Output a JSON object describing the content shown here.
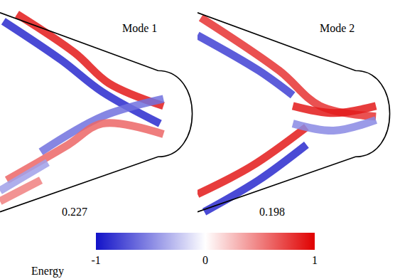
{
  "chart_data": [
    {
      "type": "field",
      "title": "Mode 1",
      "value": 0.227,
      "tick_labels": false,
      "xlim": [
        0,
        290
      ],
      "ylim": [
        320,
        0
      ],
      "bands": [
        {
          "x": [
            5,
            90,
            150,
            235
          ],
          "y": [
            30,
            85,
            130,
            175
          ],
          "value": -0.9
        },
        {
          "x": [
            25,
            110,
            160,
            240
          ],
          "y": [
            20,
            75,
            118,
            150
          ],
          "value": 0.9
        },
        {
          "x": [
            60,
            150,
            240
          ],
          "y": [
            215,
            165,
            140
          ],
          "value": -0.6
        },
        {
          "x": [
            10,
            100,
            150,
            240
          ],
          "y": [
            255,
            205,
            175,
            190
          ],
          "value": 0.6
        },
        {
          "x": [
            0,
            60
          ],
          "y": [
            285,
            255
          ],
          "value": 0.5
        },
        {
          "x": [
            0,
            70
          ],
          "y": [
            270,
            230
          ],
          "value": -0.4
        }
      ]
    },
    {
      "type": "field",
      "title": "Mode 2",
      "value": 0.198,
      "tick_labels": false,
      "xlim": [
        0,
        290
      ],
      "ylim": [
        320,
        0
      ],
      "bands": [
        {
          "x": [
            5,
            120,
            180,
            262
          ],
          "y": [
            25,
            100,
            150,
            165
          ],
          "value": 0.8
        },
        {
          "x": [
            0,
            90,
            140
          ],
          "y": [
            50,
            100,
            135
          ],
          "value": -0.8
        },
        {
          "x": [
            140,
            200,
            262
          ],
          "y": [
            150,
            160,
            150
          ],
          "value": 0.9
        },
        {
          "x": [
            0,
            80,
            160
          ],
          "y": [
            275,
            235,
            180
          ],
          "value": 0.9
        },
        {
          "x": [
            10,
            90,
            160
          ],
          "y": [
            300,
            255,
            205
          ],
          "value": -0.9
        },
        {
          "x": [
            140,
            200,
            262
          ],
          "y": [
            175,
            185,
            170
          ],
          "value": -0.5
        }
      ]
    },
    {
      "type": "colorbar",
      "label": "Energy",
      "range": [
        -1,
        1
      ],
      "ticks": [
        -1,
        0,
        1
      ],
      "colors": [
        "#1212c8",
        "#ffffff",
        "#e00000"
      ]
    }
  ]
}
